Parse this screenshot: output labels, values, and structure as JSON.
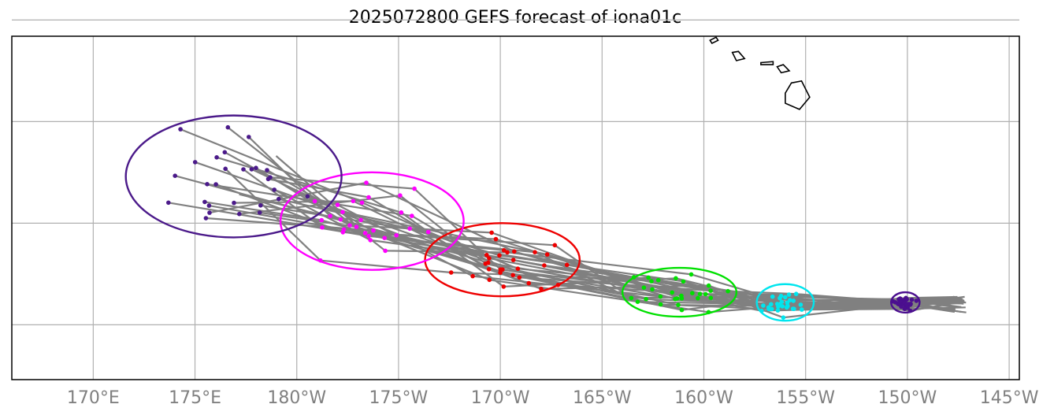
{
  "title": "2025072800 GEFS forecast of iona01c",
  "colors": {
    "track": "#808080",
    "grid": "#b0b0b0",
    "coast": "#000000",
    "axis_text": "#808080"
  },
  "chart_data": {
    "type": "map",
    "title": "2025072800 GEFS forecast of iona01c",
    "xlabel": "",
    "ylabel": "",
    "x_ticks": [
      {
        "value": 170,
        "label": "170°E"
      },
      {
        "value": 175,
        "label": "175°E"
      },
      {
        "value": 180,
        "label": "180°W"
      },
      {
        "value": 185,
        "label": "175°W"
      },
      {
        "value": 190,
        "label": "170°W"
      },
      {
        "value": 195,
        "label": "165°W"
      },
      {
        "value": 200,
        "label": "160°W"
      },
      {
        "value": 205,
        "label": "155°W"
      },
      {
        "value": 210,
        "label": "150°W"
      },
      {
        "value": 215,
        "label": "145°W"
      }
    ],
    "y_gridlines": [
      25,
      20,
      15,
      10
    ],
    "xlim": [
      166,
      215.5
    ],
    "ylim": [
      7.3,
      24.2
    ],
    "grid": true,
    "stages": [
      {
        "name": "stage1",
        "color": "#4b0f8f",
        "ellipse": {
          "cx": 209.9,
          "cy": 11.1,
          "rx": 0.7,
          "ry": 0.5
        },
        "n": 24
      },
      {
        "name": "stage2",
        "color": "#00e5ee",
        "ellipse": {
          "cx": 204.0,
          "cy": 11.1,
          "rx": 1.4,
          "ry": 0.9
        },
        "n": 30
      },
      {
        "name": "stage3",
        "color": "#00e000",
        "ellipse": {
          "cx": 198.8,
          "cy": 11.6,
          "rx": 2.8,
          "ry": 1.2
        },
        "n": 30
      },
      {
        "name": "stage4",
        "color": "#ee0000",
        "ellipse": {
          "cx": 190.1,
          "cy": 13.2,
          "rx": 3.8,
          "ry": 1.8
        },
        "n": 30
      },
      {
        "name": "stage5",
        "color": "#ff00ff",
        "ellipse": {
          "cx": 183.7,
          "cy": 15.1,
          "rx": 4.5,
          "ry": 2.4
        },
        "n": 30
      },
      {
        "name": "stage6",
        "color": "#4b1a8a",
        "ellipse": {
          "cx": 176.9,
          "cy": 17.3,
          "rx": 5.3,
          "ry": 3.0
        },
        "n": 28
      }
    ],
    "islands": [
      {
        "name": "Kauai",
        "points": [
          [
            200.3,
            24.0
          ],
          [
            200.6,
            24.15
          ],
          [
            200.7,
            24.0
          ],
          [
            200.4,
            23.85
          ]
        ]
      },
      {
        "name": "Oahu",
        "points": [
          [
            201.4,
            23.4
          ],
          [
            201.7,
            23.45
          ],
          [
            202.0,
            23.1
          ],
          [
            201.6,
            23.0
          ]
        ]
      },
      {
        "name": "Molokai",
        "points": [
          [
            202.8,
            22.9
          ],
          [
            203.4,
            22.95
          ],
          [
            203.4,
            22.8
          ],
          [
            202.8,
            22.8
          ]
        ]
      },
      {
        "name": "Maui",
        "points": [
          [
            203.6,
            22.7
          ],
          [
            203.9,
            22.8
          ],
          [
            204.2,
            22.5
          ],
          [
            203.8,
            22.4
          ]
        ]
      },
      {
        "name": "Hawaii",
        "points": [
          [
            204.3,
            21.9
          ],
          [
            204.8,
            22.0
          ],
          [
            205.2,
            21.2
          ],
          [
            204.7,
            20.6
          ],
          [
            204.0,
            20.9
          ],
          [
            204.0,
            21.4
          ]
        ]
      }
    ]
  }
}
